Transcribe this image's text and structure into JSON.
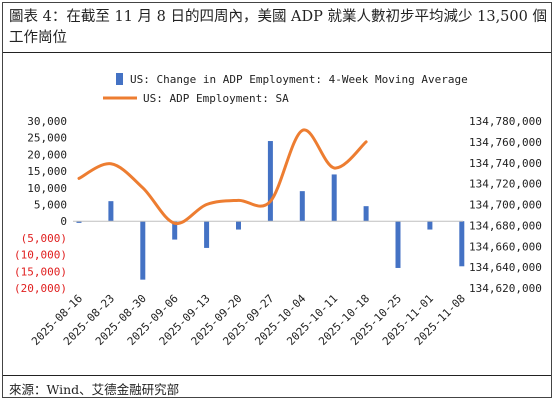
{
  "title": "圖表 4：在截至 11 月 8 日的四周內，美國 ADP 就業人數初步平均減少 13,500 個工作崗位",
  "source": "來源：Wind、艾德金融研究部",
  "chart_data": {
    "type": "bar+line",
    "x": [
      "2025-08-16",
      "2025-08-23",
      "2025-08-30",
      "2025-09-06",
      "2025-09-13",
      "2025-09-20",
      "2025-09-27",
      "2025-10-04",
      "2025-10-11",
      "2025-10-18",
      "2025-10-25",
      "2025-11-01",
      "2025-11-08"
    ],
    "left_axis": {
      "ticks": [
        30000,
        25000,
        20000,
        15000,
        10000,
        5000,
        0,
        -5000,
        -10000,
        -15000,
        -20000
      ],
      "tick_labels": [
        "30,000",
        "25,000",
        "20,000",
        "15,000",
        "10,000",
        "5,000",
        "0",
        "(5,000)",
        "(10,000)",
        "(15,000)",
        "(20,000)"
      ],
      "ylim": [
        -20000,
        30000
      ]
    },
    "right_axis": {
      "ticks": [
        134780000,
        134760000,
        134740000,
        134720000,
        134700000,
        134680000,
        134660000,
        134640000,
        134620000
      ],
      "tick_labels": [
        "134,780,000",
        "134,760,000",
        "134,740,000",
        "134,720,000",
        "134,700,000",
        "134,680,000",
        "134,660,000",
        "134,640,000",
        "134,620,000"
      ],
      "ylim": [
        134620000,
        134780000
      ]
    },
    "series": [
      {
        "name": "US: Change in ADP Employment: 4-Week Moving Average",
        "type": "bar",
        "axis": "left",
        "color": "#4472c4",
        "values": [
          -500,
          6000,
          -17500,
          -5500,
          -8000,
          -2500,
          24000,
          9000,
          14000,
          4500,
          -14000,
          -2500,
          -13500
        ]
      },
      {
        "name": "US: ADP Employment: SA",
        "type": "line",
        "axis": "right",
        "color": "#ed7d31",
        "values": [
          134725000,
          134739000,
          134716000,
          134682000,
          134700000,
          134704000,
          134703000,
          134771000,
          134735000,
          134760000,
          null,
          null,
          null
        ]
      }
    ],
    "legend_position": "top",
    "grid": false
  }
}
